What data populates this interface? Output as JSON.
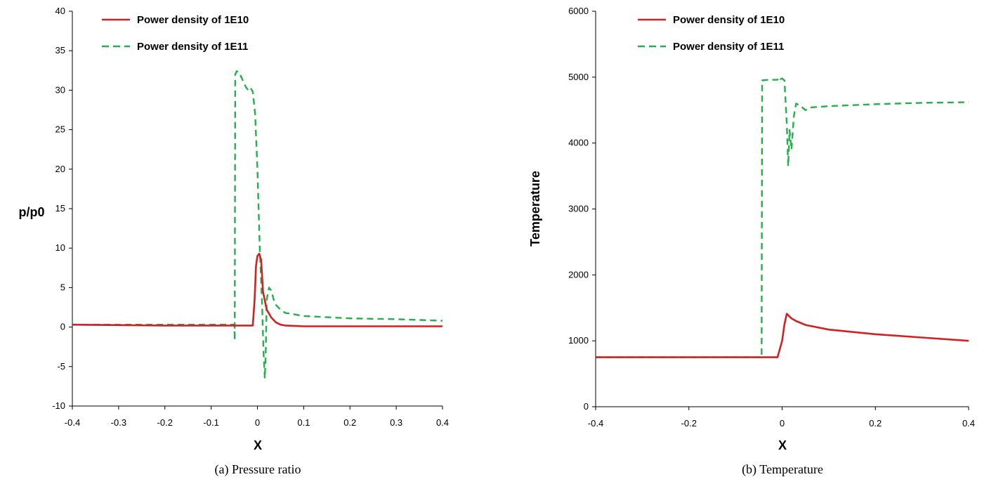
{
  "charts": [
    {
      "caption": "(a) Pressure ratio",
      "chart_data": {
        "type": "line",
        "xlabel": "X",
        "ylabel": "p/p0",
        "xlim": [
          -0.4,
          0.4
        ],
        "ylim": [
          -10,
          40
        ],
        "xticks": [
          -0.4,
          -0.3,
          -0.2,
          -0.1,
          0,
          0.1,
          0.2,
          0.3,
          0.4
        ],
        "xtick_labels": [
          "-0.4",
          "-0.3",
          "-0.2",
          "-0.1",
          "0",
          "0.1",
          "0.2",
          "0.3",
          "0.4"
        ],
        "yticks": [
          -10,
          -5,
          0,
          5,
          10,
          15,
          20,
          25,
          30,
          35,
          40
        ],
        "ytick_labels": [
          "-10",
          "-5",
          "0",
          "5",
          "10",
          "15",
          "20",
          "25",
          "30",
          "35",
          "40"
        ],
        "grid": false,
        "legend_position": "top-left",
        "series": [
          {
            "name": "Power density of 1E10",
            "color": "#d42020",
            "style": "solid",
            "x": [
              -0.4,
              -0.3,
              -0.2,
              -0.1,
              -0.01,
              -0.006,
              -0.003,
              0,
              0.004,
              0.008,
              0.012,
              0.02,
              0.03,
              0.04,
              0.05,
              0.06,
              0.08,
              0.1,
              0.2,
              0.3,
              0.4
            ],
            "y": [
              0.3,
              0.25,
              0.2,
              0.2,
              0.2,
              3.5,
              7.8,
              9,
              9.3,
              8.5,
              4.5,
              2.2,
              1.2,
              0.6,
              0.3,
              0.2,
              0.15,
              0.1,
              0.1,
              0.1,
              0.1
            ]
          },
          {
            "name": "Power density of 1E11",
            "color": "#22b14c",
            "style": "dashed",
            "x": [
              -0.4,
              -0.3,
              -0.2,
              -0.1,
              -0.05,
              -0.049,
              -0.048,
              -0.045,
              -0.04,
              -0.035,
              -0.03,
              -0.025,
              -0.02,
              -0.015,
              -0.01,
              -0.005,
              0,
              0.005,
              0.01,
              0.013,
              0.016,
              0.018,
              0.02,
              0.025,
              0.03,
              0.035,
              0.04,
              0.05,
              0.06,
              0.08,
              0.1,
              0.2,
              0.3,
              0.4
            ],
            "y": [
              0.3,
              0.3,
              0.3,
              0.3,
              0.3,
              -1.7,
              32,
              32.4,
              32.3,
              31.7,
              31,
              30.4,
              30,
              30.3,
              29.8,
              27,
              20,
              10,
              3,
              -3,
              -6.5,
              -3,
              3.5,
              5,
              4.6,
              3.5,
              2.8,
              2.2,
              1.8,
              1.6,
              1.4,
              1.1,
              1,
              0.8
            ]
          }
        ]
      }
    },
    {
      "caption": "(b) Temperature",
      "chart_data": {
        "type": "line",
        "xlabel": "X",
        "ylabel": "Temperature",
        "xlim": [
          -0.4,
          0.4
        ],
        "ylim": [
          0,
          6000
        ],
        "xticks": [
          -0.4,
          -0.2,
          0,
          0.2,
          0.4
        ],
        "xtick_labels": [
          "-0.4",
          "-0.2",
          "0",
          "0.2",
          "0.4"
        ],
        "yticks": [
          0,
          1000,
          2000,
          3000,
          4000,
          5000,
          6000
        ],
        "ytick_labels": [
          "0",
          "1000",
          "2000",
          "3000",
          "4000",
          "5000",
          "6000"
        ],
        "grid": false,
        "legend_position": "top-left",
        "series": [
          {
            "name": "Power density of 1E10",
            "color": "#d42020",
            "style": "solid",
            "x": [
              -0.4,
              -0.3,
              -0.2,
              -0.1,
              -0.01,
              0,
              0.005,
              0.01,
              0.02,
              0.03,
              0.05,
              0.1,
              0.2,
              0.3,
              0.4
            ],
            "y": [
              750,
              750,
              750,
              750,
              750,
              1000,
              1250,
              1410,
              1340,
              1300,
              1240,
              1170,
              1100,
              1050,
              1000
            ]
          },
          {
            "name": "Power density of 1E11",
            "color": "#22b14c",
            "style": "dashed",
            "x": [
              -0.4,
              -0.3,
              -0.2,
              -0.1,
              -0.044,
              -0.043,
              -0.03,
              -0.01,
              -0.006,
              -0.004,
              0,
              0.005,
              0.01,
              0.013,
              0.016,
              0.02,
              0.025,
              0.03,
              0.04,
              0.05,
              0.06,
              0.1,
              0.2,
              0.3,
              0.4
            ],
            "y": [
              750,
              750,
              750,
              750,
              750,
              4950,
              4960,
              4960,
              5000,
              4970,
              4980,
              4950,
              4300,
              3650,
              4200,
              3900,
              4400,
              4600,
              4560,
              4500,
              4540,
              4560,
              4590,
              4610,
              4620
            ]
          }
        ]
      }
    }
  ]
}
